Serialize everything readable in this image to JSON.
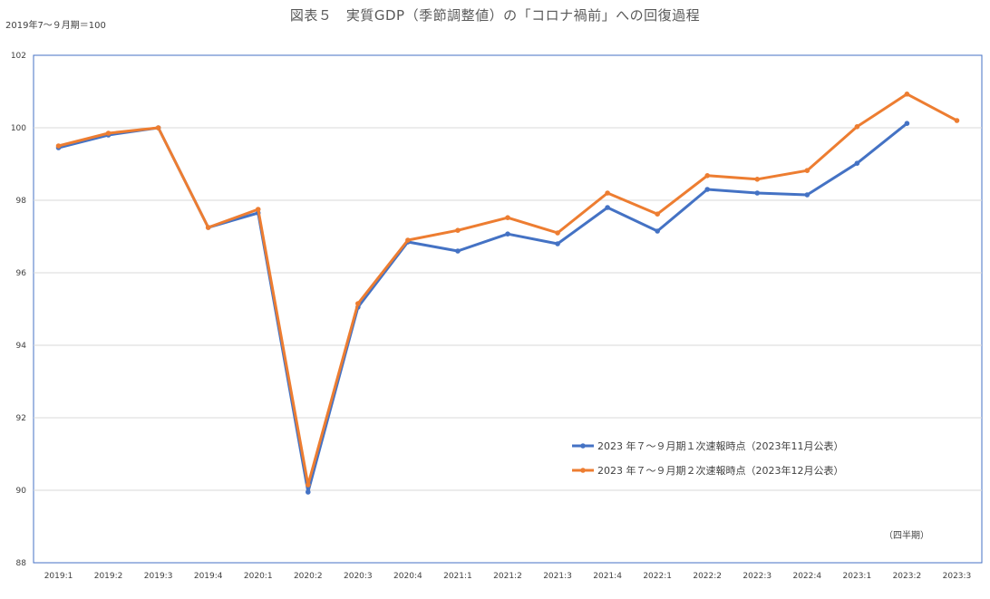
{
  "chart_data": {
    "type": "line",
    "title": "図表５　実質GDP（季節調整値）の「コロナ禍前」への回復過程",
    "base_note": "2019年7～９月期＝100",
    "unit_label": "（四半期）",
    "ylim": [
      88,
      102
    ],
    "yticks": [
      "88",
      "90",
      "92",
      "94",
      "96",
      "98",
      "100",
      "102"
    ],
    "grid": true,
    "legend_position": "bottom-right",
    "categories": [
      "2019:1",
      "2019:2",
      "2019:3",
      "2019:4",
      "2020:1",
      "2020:2",
      "2020:3",
      "2020:4",
      "2021:1",
      "2021:2",
      "2021:3",
      "2021:4",
      "2022:1",
      "2022:2",
      "2022:3",
      "2022:4",
      "2023:1",
      "2023:2",
      "2023:3"
    ],
    "series": [
      {
        "name": "2023 年７～９月期１次速報時点（2023年11月公表）",
        "color": "#4472c4",
        "values": [
          99.45,
          99.8,
          100.0,
          97.25,
          97.65,
          89.95,
          95.05,
          96.85,
          96.6,
          97.07,
          96.8,
          97.8,
          97.15,
          98.3,
          98.2,
          98.15,
          99.02,
          100.12,
          null
        ]
      },
      {
        "name": "2023 年７～９月期２次速報時点（2023年12月公表）",
        "color": "#ed7d31",
        "values": [
          99.5,
          99.85,
          100.0,
          97.25,
          97.75,
          90.15,
          95.15,
          96.9,
          97.17,
          97.52,
          97.1,
          98.2,
          97.62,
          98.68,
          98.58,
          98.82,
          100.03,
          100.93,
          100.2
        ]
      }
    ]
  }
}
